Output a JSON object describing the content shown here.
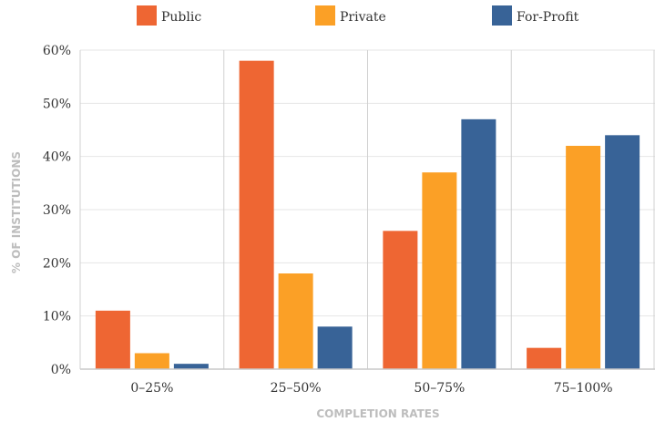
{
  "chart_data": {
    "type": "bar",
    "title": "",
    "xlabel": "COMPLETION RATES",
    "ylabel": "% OF INSTITUTIONS",
    "categories": [
      "0–25%",
      "25–50%",
      "50–75%",
      "75–100%"
    ],
    "ylim": [
      0,
      60
    ],
    "yticks": [
      {
        "value": 0,
        "label": "0%"
      },
      {
        "value": 10,
        "label": "10%"
      },
      {
        "value": 20,
        "label": "20%"
      },
      {
        "value": 30,
        "label": "30%"
      },
      {
        "value": 40,
        "label": "40%"
      },
      {
        "value": 50,
        "label": "50%"
      },
      {
        "value": 60,
        "label": "60%"
      }
    ],
    "grid": true,
    "legend_position": "top",
    "series": [
      {
        "name": "Public",
        "color": "#ee6633",
        "values": [
          11,
          58,
          26,
          4
        ]
      },
      {
        "name": "Private",
        "color": "#fba026",
        "values": [
          3,
          18,
          37,
          42
        ]
      },
      {
        "name": "For-Profit",
        "color": "#386397",
        "values": [
          1,
          8,
          47,
          44
        ]
      }
    ]
  }
}
